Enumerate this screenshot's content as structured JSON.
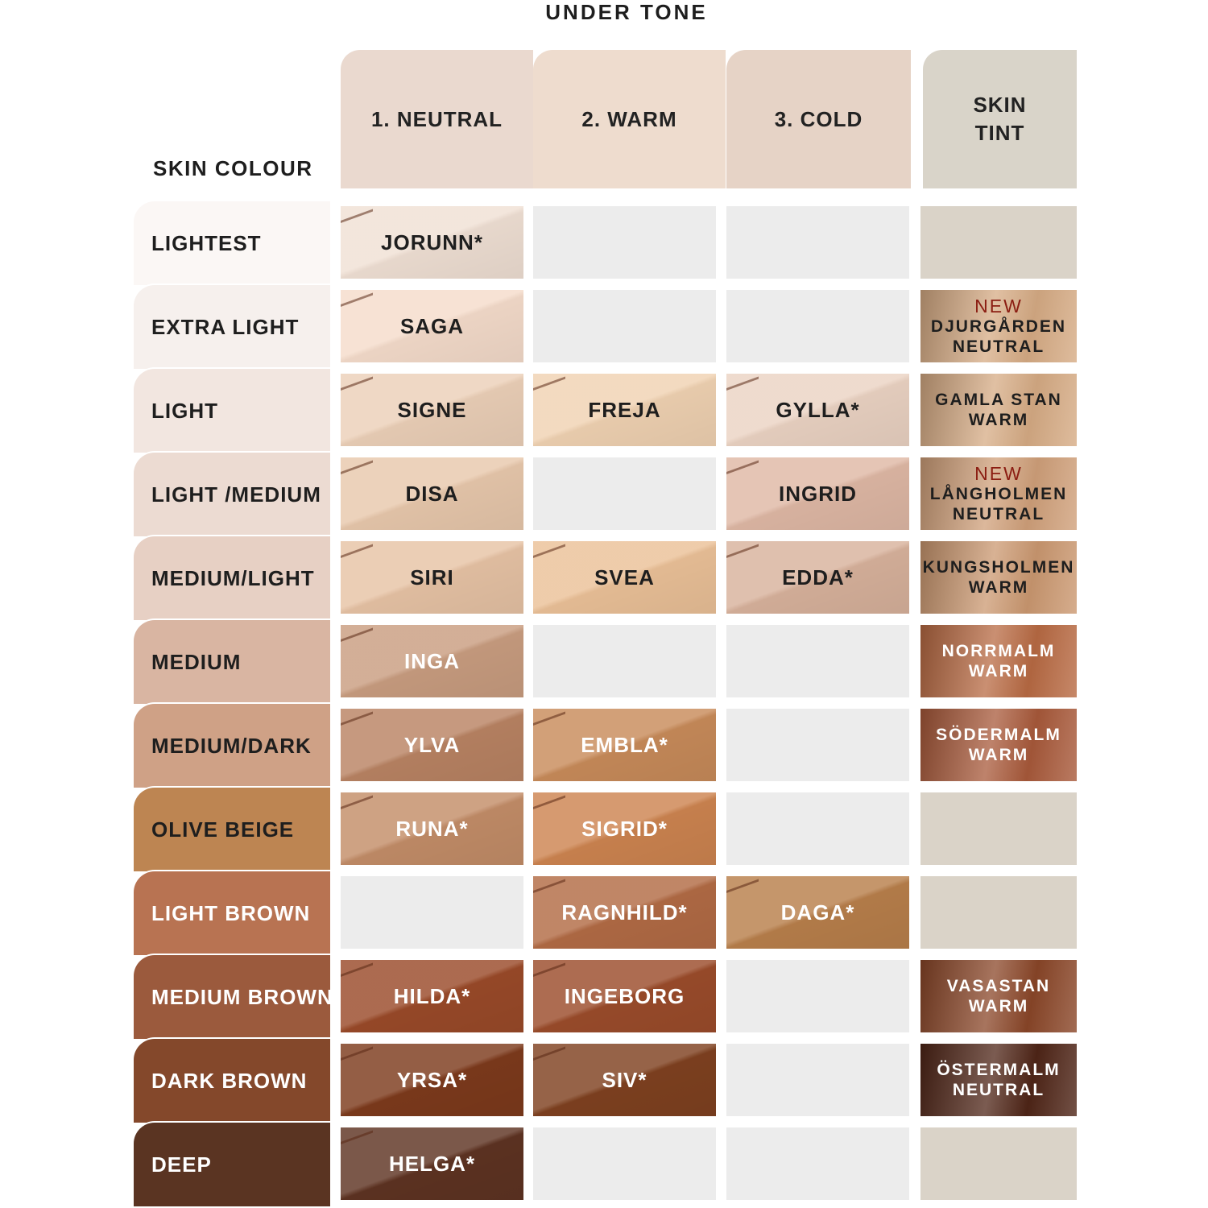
{
  "title": "UNDER TONE",
  "skin_colour_label": "SKIN COLOUR",
  "headers": [
    {
      "label": "1. NEUTRAL",
      "color": "#ead9cf"
    },
    {
      "label": "2. WARM",
      "color": "#eedcce"
    },
    {
      "label": "3. COLD",
      "color": "#e6d3c6"
    },
    {
      "label": "SKIN TINT",
      "color": "#d9d4c9"
    }
  ],
  "empty_color": "#ececec",
  "tint_empty_color": "#dad3c8",
  "new_label": "NEW",
  "rows": [
    {
      "label": "LIGHTEST",
      "color": "#fbf7f5",
      "text": "#1e1e1e",
      "cells": [
        {
          "name": "JORUNN*",
          "color": "#f0e0d4",
          "text": "#1e1e1e"
        },
        null,
        null
      ],
      "tint": null
    },
    {
      "label": "EXTRA LIGHT",
      "color": "#f6f0ed",
      "text": "#1e1e1e",
      "cells": [
        {
          "name": "SAGA",
          "color": "#f5dccb",
          "text": "#1e1e1e"
        },
        null,
        null
      ],
      "tint": {
        "new": true,
        "name": "DJURGÅRDEN",
        "tone": "NEUTRAL",
        "color": "#d6ab84",
        "text": "#1e1e1e"
      }
    },
    {
      "label": "LIGHT",
      "color": "#f2e6e0",
      "text": "#1e1e1e",
      "cells": [
        {
          "name": "SIGNE",
          "color": "#ecd0b8",
          "text": "#1e1e1e"
        },
        {
          "name": "FREJA",
          "color": "#f0d2b2",
          "text": "#1e1e1e"
        },
        {
          "name": "GYLLA*",
          "color": "#ebd3c3",
          "text": "#1e1e1e"
        }
      ],
      "tint": {
        "new": false,
        "name": "GAMLA STAN",
        "tone": "WARM",
        "color": "#d6ab84",
        "text": "#1e1e1e"
      }
    },
    {
      "label": "LIGHT /MEDIUM",
      "color": "#ecdbd2",
      "text": "#1e1e1e",
      "cells": [
        {
          "name": "DISA",
          "color": "#e8c8ac",
          "text": "#1e1e1e"
        },
        null,
        {
          "name": "INGRID",
          "color": "#dfb8a5",
          "text": "#1e1e1e"
        }
      ],
      "tint": {
        "new": true,
        "name": "LÅNGHOLMEN",
        "tone": "NEUTRAL",
        "color": "#d0a07a",
        "text": "#1e1e1e"
      }
    },
    {
      "label": "MEDIUM/LIGHT",
      "color": "#e7d0c4",
      "text": "#1e1e1e",
      "cells": [
        {
          "name": "SIRI",
          "color": "#e7c3a5",
          "text": "#1e1e1e"
        },
        {
          "name": "SVEA",
          "color": "#ebc198",
          "text": "#1e1e1e"
        },
        {
          "name": "EDDA*",
          "color": "#d8b29c",
          "text": "#1e1e1e"
        }
      ],
      "tint": {
        "new": false,
        "name": "KUNGSHOLMEN",
        "tone": "WARM",
        "color": "#cb9870",
        "text": "#1e1e1e"
      }
    },
    {
      "label": "MEDIUM",
      "color": "#d9b5a2",
      "text": "#1e1e1e",
      "cells": [
        {
          "name": "INGA",
          "color": "#c99d80",
          "text": "#ffffff"
        },
        null,
        null
      ],
      "tint": {
        "new": false,
        "name": "NORRMALM",
        "tone": "WARM",
        "color": "#b86a43",
        "text": "#ffffff"
      }
    },
    {
      "label": "MEDIUM/DARK",
      "color": "#cfa186",
      "text": "#1e1e1e",
      "cells": [
        {
          "name": "YLVA",
          "color": "#b98363",
          "text": "#ffffff"
        },
        {
          "name": "EMBLA*",
          "color": "#c88b5a",
          "text": "#ffffff"
        },
        null
      ],
      "tint": {
        "new": false,
        "name": "SÖDERMALM",
        "tone": "WARM",
        "color": "#a8593a",
        "text": "#ffffff"
      }
    },
    {
      "label": "OLIVE BEIGE",
      "color": "#bd8552",
      "text": "#1e1e1e",
      "cells": [
        {
          "name": "RUNA*",
          "color": "#c38d68",
          "text": "#ffffff"
        },
        {
          "name": "SIGRID*",
          "color": "#cd8450",
          "text": "#ffffff"
        },
        null
      ],
      "tint": null
    },
    {
      "label": "LIGHT BROWN",
      "color": "#b87352",
      "text": "#ffffff",
      "cells": [
        null,
        {
          "name": "RAGNHILD*",
          "color": "#b26b45",
          "text": "#ffffff"
        },
        {
          "name": "DAGA*",
          "color": "#b87f4b",
          "text": "#ffffff"
        }
      ],
      "tint": null
    },
    {
      "label": "MEDIUM BROWN",
      "color": "#9b5a3d",
      "text": "#ffffff",
      "cells": [
        {
          "name": "HILDA*",
          "color": "#9a4a29",
          "text": "#ffffff"
        },
        {
          "name": "INGEBORG",
          "color": "#9b4c2b",
          "text": "#ffffff"
        },
        null
      ],
      "tint": {
        "new": false,
        "name": "VASASTAN",
        "tone": "WARM",
        "color": "#8a4628",
        "text": "#ffffff"
      }
    },
    {
      "label": "DARK BROWN",
      "color": "#84482b",
      "text": "#ffffff",
      "cells": [
        {
          "name": "YRSA*",
          "color": "#7d3a1c",
          "text": "#ffffff"
        },
        {
          "name": "SIV*",
          "color": "#7f4120",
          "text": "#ffffff"
        },
        null
      ],
      "tint": {
        "new": false,
        "name": "ÖSTERMALM",
        "tone": "NEUTRAL",
        "color": "#4f2517",
        "text": "#ffffff"
      }
    },
    {
      "label": "DEEP",
      "color": "#5a3422",
      "text": "#ffffff",
      "cells": [
        {
          "name": "HELGA*",
          "color": "#5e3322",
          "text": "#ffffff"
        },
        null,
        null
      ],
      "tint": null
    }
  ]
}
